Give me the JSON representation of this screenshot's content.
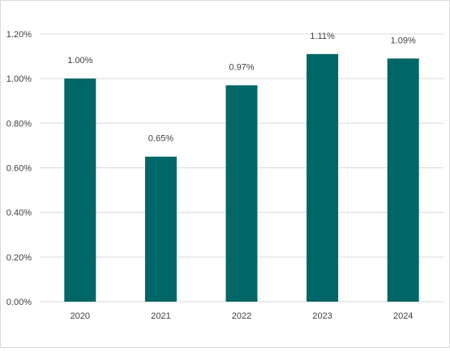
{
  "chart_data": {
    "type": "bar",
    "title": "",
    "xlabel": "",
    "ylabel": "",
    "categories": [
      "2020",
      "2021",
      "2022",
      "2023",
      "2024"
    ],
    "values": [
      1.0,
      0.65,
      0.97,
      1.11,
      1.09
    ],
    "data_labels": [
      "1.00%",
      "0.65%",
      "0.97%",
      "1.11%",
      "1.09%"
    ],
    "ylim": [
      0,
      1.2
    ],
    "y_ticks": [
      0,
      0.2,
      0.4,
      0.6,
      0.8,
      1.0,
      1.2
    ],
    "y_tick_labels": [
      "0.00%",
      "0.20%",
      "0.40%",
      "0.60%",
      "0.80%",
      "1.00%",
      "1.20%"
    ],
    "grid": true,
    "legend": "none",
    "bar_color": "#006666",
    "grid_color": "#d9d9d9",
    "text_color": "#404040"
  }
}
